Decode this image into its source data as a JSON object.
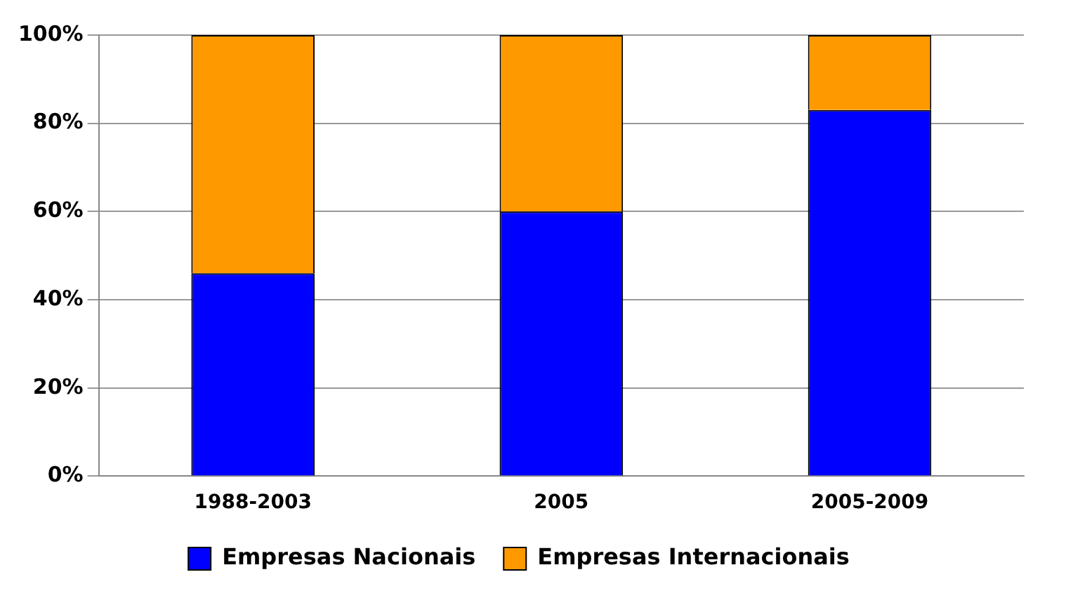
{
  "chart_data": {
    "type": "bar",
    "stacked": true,
    "categories": [
      "1988-2003",
      "2005",
      "2005-2009"
    ],
    "series": [
      {
        "name": "Empresas Nacionais",
        "color": "#0000ff",
        "values": [
          46,
          60,
          83
        ]
      },
      {
        "name": "Empresas Internacionais",
        "color": "#ff9900",
        "values": [
          54,
          40,
          17
        ]
      }
    ],
    "ylim": [
      0,
      100
    ],
    "yticks": [
      {
        "value": 0,
        "label": "0%"
      },
      {
        "value": 20,
        "label": "20%"
      },
      {
        "value": 40,
        "label": "40%"
      },
      {
        "value": 60,
        "label": "60%"
      },
      {
        "value": 80,
        "label": "80%"
      },
      {
        "value": 100,
        "label": "100%"
      }
    ],
    "grid": "y",
    "legend": "bottom"
  }
}
